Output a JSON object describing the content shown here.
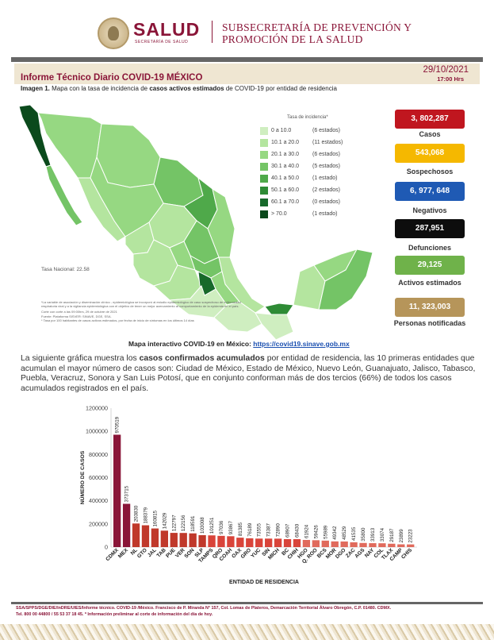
{
  "header": {
    "brand": "SALUD",
    "brand_sub": "SECRETARÍA DE SALUD",
    "subsecretaria_line1": "SUBSECRETARÍA DE PREVENCIÓN Y",
    "subsecretaria_line2": "PROMOCIÓN DE LA SALUD"
  },
  "report": {
    "title": "Informe Técnico Diario COVID-19 MÉXICO",
    "date": "29/10/2021",
    "time": "17:00 Hrs",
    "caption_prefix": "Imagen 1.",
    "caption_a": " Mapa con la tasa de incidencia de ",
    "caption_bold": "casos activos estimados",
    "caption_b": " de COVID-19 por entidad de residencia"
  },
  "map": {
    "legend_title": "Tasa de incidencia*",
    "legend": [
      {
        "range": "0  a  10.0",
        "count": "(6 estados)",
        "color": "#cfeec0"
      },
      {
        "range": "10.1 a 20.0",
        "count": "(11 estados)",
        "color": "#b4e59f"
      },
      {
        "range": "20.1 a 30.0",
        "count": "(6 estados)",
        "color": "#96d882"
      },
      {
        "range": "30.1 a 40.0",
        "count": "(5 estados)",
        "color": "#74c466"
      },
      {
        "range": "40.1 a 50.0",
        "count": "(1 estado)",
        "color": "#4fa94a"
      },
      {
        "range": "50.1 a 60.0",
        "count": "(2 estados)",
        "color": "#2e8b35"
      },
      {
        "range": "60.1 a 70.0",
        "count": "(0 estados)",
        "color": "#17692a"
      },
      {
        "range": "> 70.0",
        "count": "(1 estado)",
        "color": "#0b4a1c"
      }
    ],
    "tasa_nacional": "Tasa Nacional: 22.58",
    "note1": "*La variable de asociación y diseminación clínico - epidemiológica se incorporó al estudio epidemiológico de caso sospechoso de enfermedad respiratoria viral y a la vigilancia epidemiológica con el objetivo de tener un mejor acercamiento al comportamiento de la epidemia en el país.",
    "note2": "Corte con corte a las 09:00hrs, 29 de octubre de 2021",
    "note3": "Fuente: Plataforma SISVER: SINAVE, DGE, SSA.",
    "note4": "* Tasa por 100 habitantes de casos activos estimados, por fecha de inicio de síntomas en los últimos 14 días",
    "interactive_label": "Mapa interactivo COVID-19 en México: ",
    "interactive_link": "https://covid19.sinave.gob.mx"
  },
  "stats": [
    {
      "value": "3, 802,287",
      "label": "Casos",
      "color": "#c0161f"
    },
    {
      "value": "543,068",
      "label": "Sospechosos",
      "color": "#f5b800"
    },
    {
      "value": "6, 977, 648",
      "label": "Negativos",
      "color": "#1f5ab4"
    },
    {
      "value": "287,951",
      "label": "Defunciones",
      "color": "#0d0d0d"
    },
    {
      "value": "29,125",
      "label": "Activos estimados",
      "color": "#6fb24a"
    },
    {
      "value": "11, 323,003",
      "label": "Personas notificadas",
      "color": "#b6955a"
    }
  ],
  "paragraph": {
    "p1": "La siguiente gráfica muestra los ",
    "bold": "casos confirmados acumulados",
    "p2": " por entidad de residencia, las 10 primeras entidades que acumulan el mayor número de casos son: Ciudad de México, Estado de México, Nuevo León, Guanajuato, Jalisco, Tabasco, Puebla, Veracruz, Sonora y San Luis Potosí, que en conjunto conforman más de dos tercios (66%) de todos los casos acumulados registrados en el país."
  },
  "chart_data": {
    "type": "bar",
    "xlabel": "ENTIDAD DE RESIDENCIA",
    "ylabel": "NÚMERO DE CASOS",
    "ylim": [
      0,
      1200000
    ],
    "yticks": [
      "0",
      "200000",
      "400000",
      "600000",
      "800000",
      "1000000",
      "1200000"
    ],
    "categories": [
      "CDMX",
      "MEX",
      "NL",
      "GTO",
      "JAL",
      "TAB",
      "PUE",
      "VER",
      "SON",
      "SLP",
      "TAMPS",
      "QRO",
      "COAH",
      "OAX",
      "GRO",
      "YUC",
      "SIN",
      "MICH",
      "BC",
      "CHIH",
      "HGO",
      "Q. ROO",
      "BCS",
      "MOR",
      "DGO",
      "ZAC",
      "AGS",
      "NAY",
      "COL",
      "TLAX",
      "CAMP",
      "CHIS"
    ],
    "values": [
      970519,
      373715,
      203830,
      188379,
      160815,
      142029,
      122797,
      122156,
      118591,
      103008,
      101251,
      97036,
      93867,
      81385,
      76189,
      73555,
      73387,
      72890,
      68907,
      68430,
      61924,
      59426,
      55989,
      49342,
      48529,
      41535,
      35800,
      33913,
      33074,
      29187,
      23899,
      23223
    ],
    "value_labels": [
      "970519",
      "373715",
      "203830",
      "188379",
      "160815",
      "142029",
      "122797",
      "122156",
      "118591",
      "103008",
      "101251",
      "97036",
      "93867",
      "81385",
      "76189",
      "73555",
      "73387",
      "72890",
      "68907",
      "68430",
      "61924",
      "59426",
      "55989",
      "49342",
      "48529",
      "41535",
      "35800",
      "33913",
      "33074",
      "29187",
      "23899",
      "23223"
    ],
    "bar_colors": [
      "#8a1538",
      "#c0392b",
      "#d9443a",
      "#e06a5c"
    ]
  },
  "footer": {
    "line1": "SSA/SPPS/DGE/DIE/InDRE/UIES/Informe técnico. COVID-19 /México. Francisco de P. Miranda N° 157, Col. Lomas de Plateros, Demarcación Territorial Álvaro Obregón, C.P. 01480. CDMX.",
    "line2": "Tel. 800 00 44800 / 55 53 37 18 45. * Información preliminar al corte de información del día de hoy."
  }
}
